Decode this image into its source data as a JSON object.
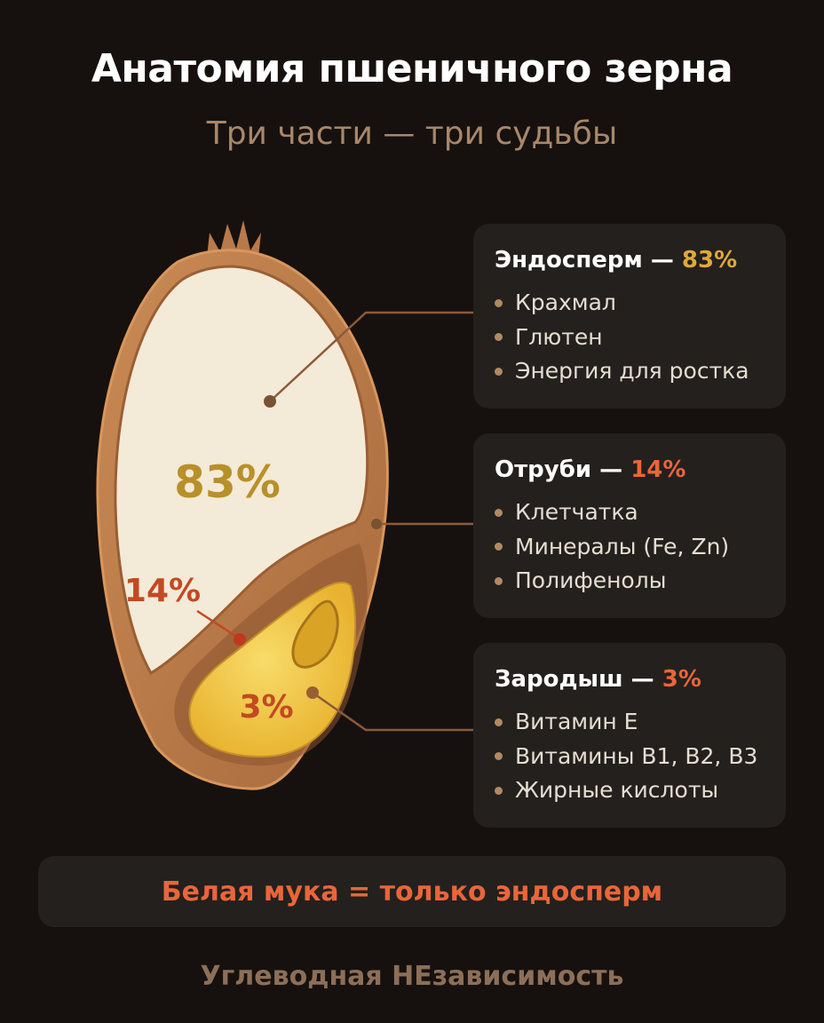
{
  "header": {
    "title": "Анатомия пшеничного зерна",
    "subtitle": "Три части — три судьбы"
  },
  "diagram": {
    "endosperm_label": "83%",
    "bran_label": "14%",
    "germ_label": "3%",
    "colors": {
      "bran": "#b87a4a",
      "endosperm": "#f4ead8",
      "germ": "#f2c63c",
      "label_endo": "#b8902a",
      "label_bran": "#c24a22",
      "label_germ": "#c24a22"
    }
  },
  "cards": [
    {
      "name": "Эндосперм —",
      "percent": "83%",
      "items": [
        "Крахмал",
        "Глютен",
        "Энергия для ростка"
      ]
    },
    {
      "name": "Отруби —",
      "percent": "14%",
      "items": [
        "Клетчатка",
        "Минералы (Fe, Zn)",
        "Полифенолы"
      ]
    },
    {
      "name": "Зародыш —",
      "percent": "3%",
      "items": [
        "Витамин E",
        "Витамины B1, B2, B3",
        "Жирные кислоты"
      ]
    }
  ],
  "banner": {
    "text": "Белая мука = только эндосперм"
  },
  "footer": {
    "text": "Углеводная НЕзависимость"
  }
}
